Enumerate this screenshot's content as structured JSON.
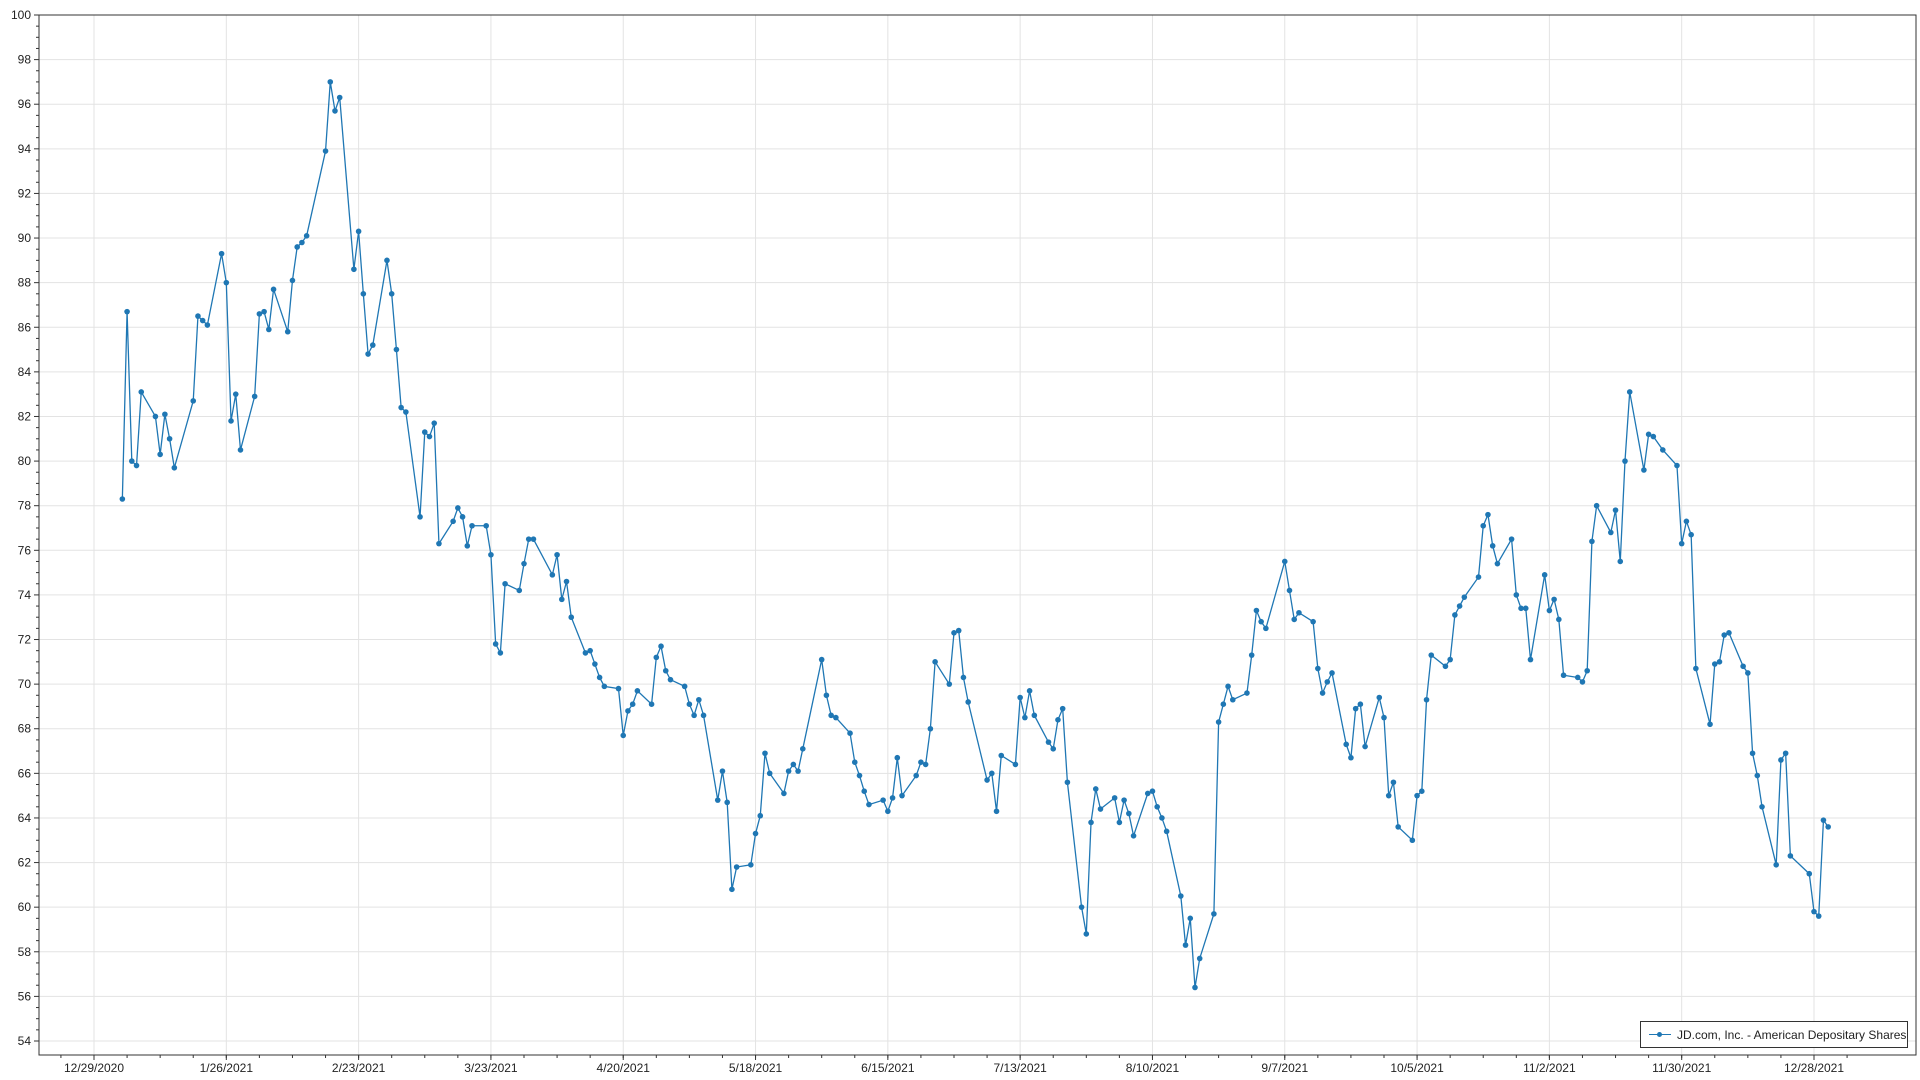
{
  "chart_data": {
    "type": "line",
    "title": "",
    "xlabel": "",
    "ylabel": "",
    "ylim": [
      54,
      100
    ],
    "yticks": [
      "54",
      "56",
      "58",
      "60",
      "62",
      "64",
      "66",
      "68",
      "70",
      "72",
      "74",
      "76",
      "78",
      "80",
      "82",
      "84",
      "86",
      "88",
      "90",
      "92",
      "94",
      "96",
      "98",
      "100"
    ],
    "xticks": [
      "12/29/2020",
      "1/26/2021",
      "2/23/2021",
      "3/23/2021",
      "4/20/2021",
      "5/18/2021",
      "6/15/2021",
      "7/13/2021",
      "8/10/2021",
      "9/7/2021",
      "10/5/2021",
      "11/2/2021",
      "11/30/2021",
      "12/28/2021"
    ],
    "grid": true,
    "legend_position": "bottom-right",
    "color": "#1f77b4",
    "series": [
      {
        "name": "JD.com, Inc. - American Depositary Shares",
        "points": [
          [
            "2021-01-04",
            78.3
          ],
          [
            "2021-01-05",
            86.7
          ],
          [
            "2021-01-06",
            80.0
          ],
          [
            "2021-01-07",
            79.8
          ],
          [
            "2021-01-08",
            83.1
          ],
          [
            "2021-01-11",
            82.0
          ],
          [
            "2021-01-12",
            80.3
          ],
          [
            "2021-01-13",
            82.1
          ],
          [
            "2021-01-14",
            81.0
          ],
          [
            "2021-01-15",
            79.7
          ],
          [
            "2021-01-19",
            82.7
          ],
          [
            "2021-01-20",
            86.5
          ],
          [
            "2021-01-21",
            86.3
          ],
          [
            "2021-01-22",
            86.1
          ],
          [
            "2021-01-25",
            89.3
          ],
          [
            "2021-01-26",
            88.0
          ],
          [
            "2021-01-27",
            81.8
          ],
          [
            "2021-01-28",
            83.0
          ],
          [
            "2021-01-29",
            80.5
          ],
          [
            "2021-02-01",
            82.9
          ],
          [
            "2021-02-02",
            86.6
          ],
          [
            "2021-02-03",
            86.7
          ],
          [
            "2021-02-04",
            85.9
          ],
          [
            "2021-02-05",
            87.7
          ],
          [
            "2021-02-08",
            85.8
          ],
          [
            "2021-02-09",
            88.1
          ],
          [
            "2021-02-10",
            89.6
          ],
          [
            "2021-02-11",
            89.8
          ],
          [
            "2021-02-12",
            90.1
          ],
          [
            "2021-02-16",
            93.9
          ],
          [
            "2021-02-17",
            97.0
          ],
          [
            "2021-02-18",
            95.7
          ],
          [
            "2021-02-19",
            96.3
          ],
          [
            "2021-02-22",
            88.6
          ],
          [
            "2021-02-23",
            90.3
          ],
          [
            "2021-02-24",
            87.5
          ],
          [
            "2021-02-25",
            84.8
          ],
          [
            "2021-02-26",
            85.2
          ],
          [
            "2021-03-01",
            89.0
          ],
          [
            "2021-03-02",
            87.5
          ],
          [
            "2021-03-03",
            85.0
          ],
          [
            "2021-03-04",
            82.4
          ],
          [
            "2021-03-05",
            82.2
          ],
          [
            "2021-03-08",
            77.5
          ],
          [
            "2021-03-09",
            81.3
          ],
          [
            "2021-03-10",
            81.1
          ],
          [
            "2021-03-11",
            81.7
          ],
          [
            "2021-03-12",
            76.3
          ],
          [
            "2021-03-15",
            77.3
          ],
          [
            "2021-03-16",
            77.9
          ],
          [
            "2021-03-17",
            77.5
          ],
          [
            "2021-03-18",
            76.2
          ],
          [
            "2021-03-19",
            77.1
          ],
          [
            "2021-03-22",
            77.1
          ],
          [
            "2021-03-23",
            75.8
          ],
          [
            "2021-03-24",
            71.8
          ],
          [
            "2021-03-25",
            71.4
          ],
          [
            "2021-03-26",
            74.5
          ],
          [
            "2021-03-29",
            74.2
          ],
          [
            "2021-03-30",
            75.4
          ],
          [
            "2021-03-31",
            76.5
          ],
          [
            "2021-04-01",
            76.5
          ],
          [
            "2021-04-05",
            74.9
          ],
          [
            "2021-04-06",
            75.8
          ],
          [
            "2021-04-07",
            73.8
          ],
          [
            "2021-04-08",
            74.6
          ],
          [
            "2021-04-09",
            73.0
          ],
          [
            "2021-04-12",
            71.4
          ],
          [
            "2021-04-13",
            71.5
          ],
          [
            "2021-04-14",
            70.9
          ],
          [
            "2021-04-15",
            70.3
          ],
          [
            "2021-04-16",
            69.9
          ],
          [
            "2021-04-19",
            69.8
          ],
          [
            "2021-04-20",
            67.7
          ],
          [
            "2021-04-21",
            68.8
          ],
          [
            "2021-04-22",
            69.1
          ],
          [
            "2021-04-23",
            69.7
          ],
          [
            "2021-04-26",
            69.1
          ],
          [
            "2021-04-27",
            71.2
          ],
          [
            "2021-04-28",
            71.7
          ],
          [
            "2021-04-29",
            70.6
          ],
          [
            "2021-04-30",
            70.2
          ],
          [
            "2021-05-03",
            69.9
          ],
          [
            "2021-05-04",
            69.1
          ],
          [
            "2021-05-05",
            68.6
          ],
          [
            "2021-05-06",
            69.3
          ],
          [
            "2021-05-07",
            68.6
          ],
          [
            "2021-05-10",
            64.8
          ],
          [
            "2021-05-11",
            66.1
          ],
          [
            "2021-05-12",
            64.7
          ],
          [
            "2021-05-13",
            60.8
          ],
          [
            "2021-05-14",
            61.8
          ],
          [
            "2021-05-17",
            61.9
          ],
          [
            "2021-05-18",
            63.3
          ],
          [
            "2021-05-19",
            64.1
          ],
          [
            "2021-05-20",
            66.9
          ],
          [
            "2021-05-21",
            66.0
          ],
          [
            "2021-05-24",
            65.1
          ],
          [
            "2021-05-25",
            66.1
          ],
          [
            "2021-05-26",
            66.4
          ],
          [
            "2021-05-27",
            66.1
          ],
          [
            "2021-05-28",
            67.1
          ],
          [
            "2021-06-01",
            71.1
          ],
          [
            "2021-06-02",
            69.5
          ],
          [
            "2021-06-03",
            68.6
          ],
          [
            "2021-06-04",
            68.5
          ],
          [
            "2021-06-07",
            67.8
          ],
          [
            "2021-06-08",
            66.5
          ],
          [
            "2021-06-09",
            65.9
          ],
          [
            "2021-06-10",
            65.2
          ],
          [
            "2021-06-11",
            64.6
          ],
          [
            "2021-06-14",
            64.8
          ],
          [
            "2021-06-15",
            64.3
          ],
          [
            "2021-06-16",
            64.9
          ],
          [
            "2021-06-17",
            66.7
          ],
          [
            "2021-06-18",
            65.0
          ],
          [
            "2021-06-21",
            65.9
          ],
          [
            "2021-06-22",
            66.5
          ],
          [
            "2021-06-23",
            66.4
          ],
          [
            "2021-06-24",
            68.0
          ],
          [
            "2021-06-25",
            71.0
          ],
          [
            "2021-06-28",
            70.0
          ],
          [
            "2021-06-29",
            72.3
          ],
          [
            "2021-06-30",
            72.4
          ],
          [
            "2021-07-01",
            70.3
          ],
          [
            "2021-07-02",
            69.2
          ],
          [
            "2021-07-06",
            65.7
          ],
          [
            "2021-07-07",
            66.0
          ],
          [
            "2021-07-08",
            64.3
          ],
          [
            "2021-07-09",
            66.8
          ],
          [
            "2021-07-12",
            66.4
          ],
          [
            "2021-07-13",
            69.4
          ],
          [
            "2021-07-14",
            68.5
          ],
          [
            "2021-07-15",
            69.7
          ],
          [
            "2021-07-16",
            68.6
          ],
          [
            "2021-07-19",
            67.4
          ],
          [
            "2021-07-20",
            67.1
          ],
          [
            "2021-07-21",
            68.4
          ],
          [
            "2021-07-22",
            68.9
          ],
          [
            "2021-07-23",
            65.6
          ],
          [
            "2021-07-26",
            60.0
          ],
          [
            "2021-07-27",
            58.8
          ],
          [
            "2021-07-28",
            63.8
          ],
          [
            "2021-07-29",
            65.3
          ],
          [
            "2021-07-30",
            64.4
          ],
          [
            "2021-08-02",
            64.9
          ],
          [
            "2021-08-03",
            63.8
          ],
          [
            "2021-08-04",
            64.8
          ],
          [
            "2021-08-05",
            64.2
          ],
          [
            "2021-08-06",
            63.2
          ],
          [
            "2021-08-09",
            65.1
          ],
          [
            "2021-08-10",
            65.2
          ],
          [
            "2021-08-11",
            64.5
          ],
          [
            "2021-08-12",
            64.0
          ],
          [
            "2021-08-13",
            63.4
          ],
          [
            "2021-08-16",
            60.5
          ],
          [
            "2021-08-17",
            58.3
          ],
          [
            "2021-08-18",
            59.5
          ],
          [
            "2021-08-19",
            56.4
          ],
          [
            "2021-08-20",
            57.7
          ],
          [
            "2021-08-23",
            59.7
          ],
          [
            "2021-08-24",
            68.3
          ],
          [
            "2021-08-25",
            69.1
          ],
          [
            "2021-08-26",
            69.9
          ],
          [
            "2021-08-27",
            69.3
          ],
          [
            "2021-08-30",
            69.6
          ],
          [
            "2021-08-31",
            71.3
          ],
          [
            "2021-09-01",
            73.3
          ],
          [
            "2021-09-02",
            72.8
          ],
          [
            "2021-09-03",
            72.5
          ],
          [
            "2021-09-07",
            75.5
          ],
          [
            "2021-09-08",
            74.2
          ],
          [
            "2021-09-09",
            72.9
          ],
          [
            "2021-09-10",
            73.2
          ],
          [
            "2021-09-13",
            72.8
          ],
          [
            "2021-09-14",
            70.7
          ],
          [
            "2021-09-15",
            69.6
          ],
          [
            "2021-09-16",
            70.1
          ],
          [
            "2021-09-17",
            70.5
          ],
          [
            "2021-09-20",
            67.3
          ],
          [
            "2021-09-21",
            66.7
          ],
          [
            "2021-09-22",
            68.9
          ],
          [
            "2021-09-23",
            69.1
          ],
          [
            "2021-09-24",
            67.2
          ],
          [
            "2021-09-27",
            69.4
          ],
          [
            "2021-09-28",
            68.5
          ],
          [
            "2021-09-29",
            65.0
          ],
          [
            "2021-09-30",
            65.6
          ],
          [
            "2021-10-01",
            63.6
          ],
          [
            "2021-10-04",
            63.0
          ],
          [
            "2021-10-05",
            65.0
          ],
          [
            "2021-10-06",
            65.2
          ],
          [
            "2021-10-07",
            69.3
          ],
          [
            "2021-10-08",
            71.3
          ],
          [
            "2021-10-11",
            70.8
          ],
          [
            "2021-10-12",
            71.1
          ],
          [
            "2021-10-13",
            73.1
          ],
          [
            "2021-10-14",
            73.5
          ],
          [
            "2021-10-15",
            73.9
          ],
          [
            "2021-10-18",
            74.8
          ],
          [
            "2021-10-19",
            77.1
          ],
          [
            "2021-10-20",
            77.6
          ],
          [
            "2021-10-21",
            76.2
          ],
          [
            "2021-10-22",
            75.4
          ],
          [
            "2021-10-25",
            76.5
          ],
          [
            "2021-10-26",
            74.0
          ],
          [
            "2021-10-27",
            73.4
          ],
          [
            "2021-10-28",
            73.4
          ],
          [
            "2021-10-29",
            71.1
          ],
          [
            "2021-11-01",
            74.9
          ],
          [
            "2021-11-02",
            73.3
          ],
          [
            "2021-11-03",
            73.8
          ],
          [
            "2021-11-04",
            72.9
          ],
          [
            "2021-11-05",
            70.4
          ],
          [
            "2021-11-08",
            70.3
          ],
          [
            "2021-11-09",
            70.1
          ],
          [
            "2021-11-10",
            70.6
          ],
          [
            "2021-11-11",
            76.4
          ],
          [
            "2021-11-12",
            78.0
          ],
          [
            "2021-11-15",
            76.8
          ],
          [
            "2021-11-16",
            77.8
          ],
          [
            "2021-11-17",
            75.5
          ],
          [
            "2021-11-18",
            80.0
          ],
          [
            "2021-11-19",
            83.1
          ],
          [
            "2021-11-22",
            79.6
          ],
          [
            "2021-11-23",
            81.2
          ],
          [
            "2021-11-24",
            81.1
          ],
          [
            "2021-11-26",
            80.5
          ],
          [
            "2021-11-29",
            79.8
          ],
          [
            "2021-11-30",
            76.3
          ],
          [
            "2021-12-01",
            77.3
          ],
          [
            "2021-12-02",
            76.7
          ],
          [
            "2021-12-03",
            70.7
          ],
          [
            "2021-12-06",
            68.2
          ],
          [
            "2021-12-07",
            70.9
          ],
          [
            "2021-12-08",
            71.0
          ],
          [
            "2021-12-09",
            72.2
          ],
          [
            "2021-12-10",
            72.3
          ],
          [
            "2021-12-13",
            70.8
          ],
          [
            "2021-12-14",
            70.5
          ],
          [
            "2021-12-15",
            66.9
          ],
          [
            "2021-12-16",
            65.9
          ],
          [
            "2021-12-17",
            64.5
          ],
          [
            "2021-12-20",
            61.9
          ],
          [
            "2021-12-21",
            66.6
          ],
          [
            "2021-12-22",
            66.9
          ],
          [
            "2021-12-23",
            62.3
          ],
          [
            "2021-12-27",
            61.5
          ],
          [
            "2021-12-28",
            59.8
          ],
          [
            "2021-12-29",
            59.6
          ],
          [
            "2021-12-30",
            63.9
          ],
          [
            "2021-12-31",
            63.6
          ]
        ]
      }
    ]
  }
}
